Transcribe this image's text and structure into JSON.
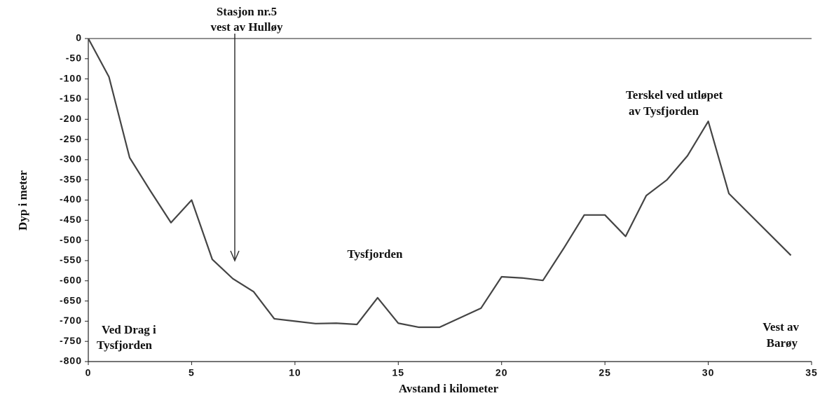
{
  "chart_data": {
    "type": "line",
    "xlabel": "Avstand i kilometer",
    "ylabel": "Dyp i meter",
    "annotations": [
      "Stasjon nr.5",
      "vest av Hulløy",
      "Tysfjorden",
      "Terskel ved utløpet",
      "av Tysfjorden",
      "Ved Drag i",
      "Tysfjorden",
      "Vest av",
      "Barøy"
    ],
    "x": [
      0,
      1,
      2,
      3,
      4,
      5,
      6,
      7,
      8,
      9,
      10,
      11,
      12,
      13,
      14,
      15,
      16,
      17,
      19,
      20,
      21,
      22,
      23,
      24,
      25,
      26,
      27,
      28,
      29,
      30,
      31,
      34
    ],
    "series": [
      {
        "color": "#444444",
        "values": [
          0,
          -95,
          -295,
          -377,
          -456,
          -400,
          -547,
          -595,
          -627,
          -694,
          -700,
          -706,
          -705,
          -708,
          -642,
          -705,
          -715,
          -715,
          -668,
          -590,
          -593,
          -599,
          -520,
          -437,
          -437,
          -490,
          -389,
          -350,
          -290,
          -205,
          -384,
          -537
        ]
      }
    ],
    "xlim": [
      0,
      35
    ],
    "xticks": [
      0,
      5,
      10,
      15,
      20,
      25,
      30,
      35
    ],
    "ylim": [
      -800,
      0
    ],
    "yticks": [
      0,
      -50,
      -100,
      -150,
      -200,
      -250,
      -300,
      -350,
      -400,
      -450,
      -500,
      -550,
      -600,
      -650,
      -700,
      -750,
      -800
    ]
  }
}
